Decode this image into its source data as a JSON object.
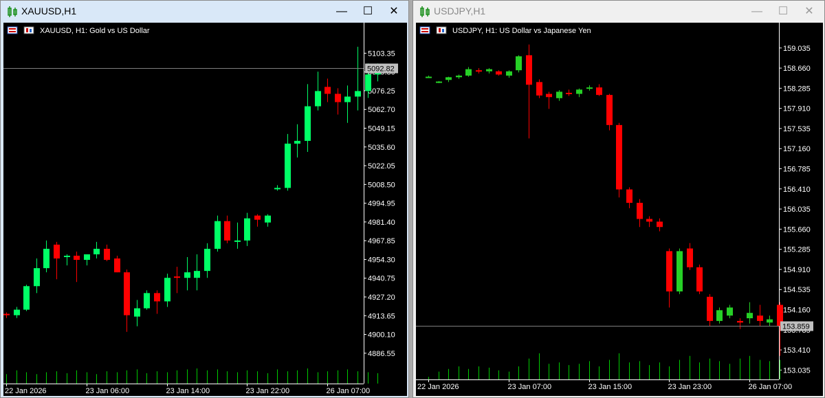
{
  "colors": {
    "bull": "#00ff66",
    "bull2": "#26d026",
    "bear": "#ff0000",
    "volume": "#00cc00",
    "axis": "#ffffff",
    "grid": "#7f7f7f"
  },
  "windows": [
    {
      "title": "XAUUSD,H1",
      "chart_label": "XAUUSD, H1:  Gold vs US Dollar",
      "controls": {
        "minimize": "—",
        "maximize": "☐",
        "close": "✕"
      },
      "price_box": "5092.82"
    },
    {
      "title": "USDJPY,H1",
      "chart_label": "USDJPY, H1:  US Dollar vs Japanese Yen",
      "controls": {
        "minimize": "—",
        "maximize": "☐",
        "close": "✕"
      },
      "price_box": "153.859"
    }
  ],
  "chart_data": [
    {
      "type": "candlestick",
      "symbol": "XAUUSD",
      "timeframe": "H1",
      "title": "XAUUSD, H1:  Gold vs US Dollar",
      "ylim": [
        4880,
        5111
      ],
      "yticks": [
        "5103.35",
        "5089.80",
        "5076.25",
        "5062.70",
        "5049.15",
        "5035.60",
        "5022.05",
        "5008.50",
        "4994.95",
        "4981.40",
        "4967.85",
        "4954.30",
        "4940.75",
        "4927.20",
        "4913.65",
        "4900.10",
        "4886.55"
      ],
      "xticks": [
        {
          "index": 0,
          "label": "22 Jan 2026"
        },
        {
          "index": 8,
          "label": "23 Jan 06:00"
        },
        {
          "index": 16,
          "label": "23 Jan 14:00"
        },
        {
          "index": 24,
          "label": "23 Jan 22:00"
        },
        {
          "index": 32,
          "label": "26 Jan 07:00"
        }
      ],
      "last_price": 5092.82,
      "candles": [
        [
          4915,
          4916,
          4912,
          4914
        ],
        [
          4914,
          4920,
          4912,
          4918
        ],
        [
          4918,
          4936,
          4917,
          4935
        ],
        [
          4935,
          4955,
          4930,
          4948
        ],
        [
          4948,
          4968,
          4945,
          4962
        ],
        [
          4965,
          4967,
          4940,
          4955
        ],
        [
          4956,
          4958,
          4950,
          4957
        ],
        [
          4957,
          4960,
          4938,
          4954
        ],
        [
          4954,
          4957,
          4950,
          4958
        ],
        [
          4958,
          4967,
          4955,
          4962
        ],
        [
          4962,
          4965,
          4953,
          4954
        ],
        [
          4955,
          4957,
          4945,
          4945
        ],
        [
          4945,
          4947,
          4902,
          4914
        ],
        [
          4913,
          4925,
          4906,
          4919
        ],
        [
          4919,
          4932,
          4918,
          4930
        ],
        [
          4930,
          4932,
          4915,
          4924
        ],
        [
          4924,
          4944,
          4920,
          4941
        ],
        [
          4942,
          4949,
          4930,
          4941
        ],
        [
          4941,
          4956,
          4932,
          4945
        ],
        [
          4941,
          4958,
          4932,
          4946
        ],
        [
          4946,
          4966,
          4941,
          4962
        ],
        [
          4962,
          4986,
          4960,
          4982
        ],
        [
          4982,
          4986,
          4966,
          4968
        ],
        [
          4968,
          4981,
          4962,
          4968
        ],
        [
          4968,
          4988,
          4964,
          4984
        ],
        [
          4986,
          4987,
          4978,
          4983
        ],
        [
          4981,
          4987,
          4978,
          4986
        ],
        [
          5006,
          5008,
          5004,
          5006
        ],
        [
          5006,
          5045,
          5004,
          5038
        ],
        [
          5038,
          5052,
          5028,
          5040
        ],
        [
          5040,
          5081,
          5032,
          5065
        ],
        [
          5065,
          5090,
          5062,
          5076
        ],
        [
          5079,
          5085,
          5068,
          5074
        ],
        [
          5074,
          5078,
          5059,
          5068
        ],
        [
          5068,
          5080,
          5053,
          5072
        ],
        [
          5072,
          5108,
          5062,
          5076
        ],
        [
          5076,
          5096,
          5071,
          5088
        ],
        [
          5088,
          5096,
          5083,
          5092.82
        ]
      ],
      "volumes": [
        10,
        14,
        12,
        10,
        12,
        13,
        11,
        14,
        12,
        10,
        13,
        12,
        14,
        15,
        11,
        13,
        12,
        14,
        15,
        16,
        14,
        15,
        13,
        12,
        14,
        13,
        11,
        15,
        13,
        14,
        16,
        12,
        13,
        14,
        15,
        13,
        12,
        11
      ]
    },
    {
      "type": "candlestick",
      "symbol": "USDJPY",
      "timeframe": "H1",
      "title": "USDJPY, H1:  US Dollar vs Japanese Yen",
      "ylim": [
        152.95,
        159.25
      ],
      "yticks": [
        "159.035",
        "158.660",
        "158.285",
        "157.910",
        "157.535",
        "157.160",
        "156.785",
        "156.410",
        "156.035",
        "155.660",
        "155.285",
        "154.910",
        "154.535",
        "154.160",
        "153.785",
        "153.410",
        "153.035"
      ],
      "xticks": [
        {
          "index": 0,
          "label": "22 Jan 2026"
        },
        {
          "index": 8,
          "label": "23 Jan 07:00"
        },
        {
          "index": 16,
          "label": "23 Jan 15:00"
        },
        {
          "index": 24,
          "label": "23 Jan 23:00"
        },
        {
          "index": 32,
          "label": "26 Jan 07:00"
        }
      ],
      "last_price": 153.859,
      "candles": [
        [
          158.5,
          158.52,
          158.48,
          158.5
        ],
        [
          158.4,
          158.42,
          158.38,
          158.41
        ],
        [
          158.44,
          158.5,
          158.4,
          158.49
        ],
        [
          158.49,
          158.54,
          158.46,
          158.52
        ],
        [
          158.52,
          158.68,
          158.5,
          158.64
        ],
        [
          158.62,
          158.66,
          158.56,
          158.6
        ],
        [
          158.6,
          158.66,
          158.56,
          158.64
        ],
        [
          158.6,
          158.62,
          158.52,
          158.54
        ],
        [
          158.52,
          158.62,
          158.48,
          158.6
        ],
        [
          158.62,
          158.9,
          158.58,
          158.88
        ],
        [
          158.9,
          159.1,
          157.35,
          158.35
        ],
        [
          158.4,
          158.45,
          158.1,
          158.15
        ],
        [
          158.18,
          158.22,
          157.9,
          158.12
        ],
        [
          158.1,
          158.25,
          158.05,
          158.22
        ],
        [
          158.2,
          158.26,
          158.14,
          158.18
        ],
        [
          158.18,
          158.28,
          158.12,
          158.26
        ],
        [
          158.3,
          158.34,
          158.24,
          158.3
        ],
        [
          158.3,
          158.36,
          158.14,
          158.16
        ],
        [
          158.16,
          158.18,
          157.5,
          157.6
        ],
        [
          157.6,
          157.64,
          156.25,
          156.4
        ],
        [
          156.4,
          156.44,
          156.05,
          156.15
        ],
        [
          156.15,
          156.22,
          155.7,
          155.85
        ],
        [
          155.85,
          155.9,
          155.7,
          155.8
        ],
        [
          155.8,
          155.86,
          155.62,
          155.7
        ],
        [
          155.25,
          155.3,
          154.2,
          154.5
        ],
        [
          154.5,
          155.3,
          154.45,
          155.25
        ],
        [
          155.3,
          155.4,
          154.9,
          154.95
        ],
        [
          154.95,
          155.0,
          154.45,
          154.5
        ],
        [
          154.4,
          154.45,
          153.85,
          153.95
        ],
        [
          153.95,
          154.2,
          153.9,
          154.15
        ],
        [
          154.05,
          154.25,
          154.0,
          154.2
        ],
        [
          153.95,
          154.0,
          153.8,
          153.92
        ],
        [
          154.0,
          154.3,
          153.9,
          154.1
        ],
        [
          154.05,
          154.25,
          153.85,
          153.95
        ],
        [
          153.92,
          154.05,
          153.85,
          153.98
        ],
        [
          154.25,
          154.3,
          153.3,
          153.86
        ]
      ],
      "volumes": [
        2,
        6,
        8,
        10,
        8,
        10,
        9,
        7,
        6,
        10,
        16,
        20,
        12,
        13,
        11,
        12,
        14,
        10,
        15,
        20,
        13,
        14,
        11,
        13,
        10,
        15,
        18,
        13,
        16,
        14,
        12,
        16,
        18,
        15,
        14,
        15
      ]
    }
  ]
}
